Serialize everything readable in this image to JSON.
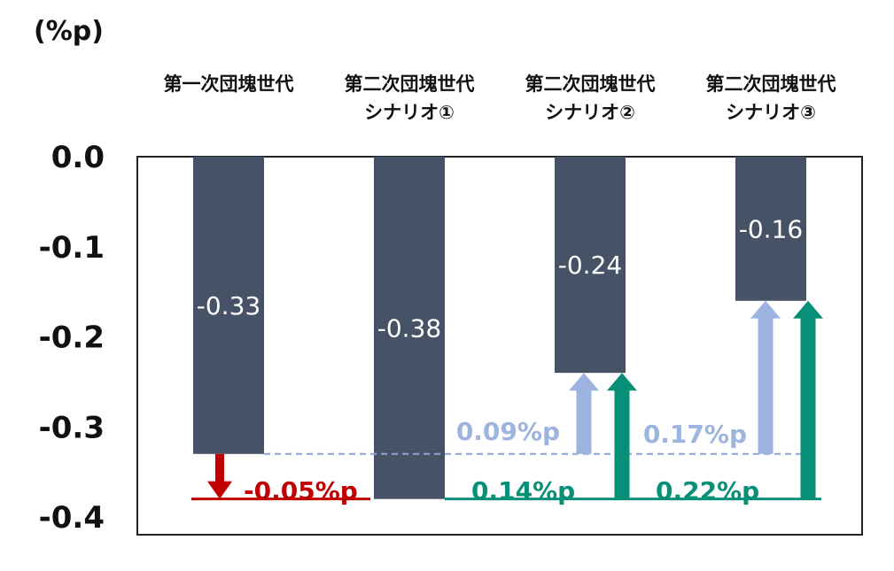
{
  "chart_data": {
    "type": "bar",
    "unit_label": "(%p)",
    "categories": [
      [
        "第一次団塊世代"
      ],
      [
        "第二次団塊世代",
        "シナリオ①"
      ],
      [
        "第二次団塊世代",
        "シナリオ②"
      ],
      [
        "第二次団塊世代",
        "シナリオ③"
      ]
    ],
    "values": [
      -0.33,
      -0.38,
      -0.24,
      -0.16
    ],
    "value_labels": [
      "-0.33",
      "-0.38",
      "-0.24",
      "-0.16"
    ],
    "y_ticks": [
      "0.0",
      "-0.1",
      "-0.2",
      "-0.3",
      "-0.4"
    ],
    "ylim": [
      -0.4,
      0.0
    ],
    "reference_lines": [
      {
        "value": -0.33,
        "style": "dashed",
        "color": "#8fa3d1"
      },
      {
        "value": -0.38,
        "style": "solid"
      }
    ],
    "annotations": [
      {
        "category": 0,
        "from": -0.33,
        "to": -0.38,
        "label": "-0.05%p",
        "color": "#c00000"
      },
      {
        "category": 2,
        "from": -0.33,
        "to": -0.24,
        "label": "0.09%p",
        "color": "#9db3e0"
      },
      {
        "category": 2,
        "from": -0.38,
        "to": -0.24,
        "label": "0.14%p",
        "color": "#079077"
      },
      {
        "category": 3,
        "from": -0.33,
        "to": -0.16,
        "label": "0.17%p",
        "color": "#9db3e0"
      },
      {
        "category": 3,
        "from": -0.38,
        "to": -0.16,
        "label": "0.22%p",
        "color": "#079077"
      }
    ],
    "colors": {
      "bar": "#465266",
      "red": "#c00000",
      "green": "#079077",
      "lightblue": "#9db3e0"
    }
  }
}
